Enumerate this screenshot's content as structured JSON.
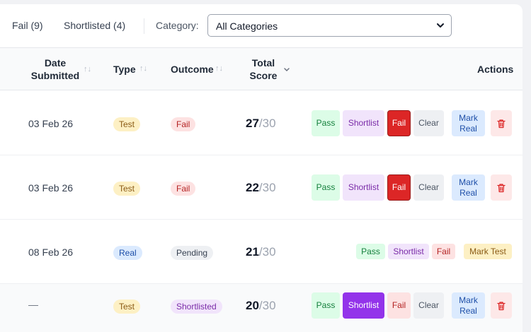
{
  "filters": {
    "fail_tab": "Fail (9)",
    "shortlisted_tab": "Shortlisted (4)",
    "category_label": "Category:",
    "category_value": "All Categories"
  },
  "table": {
    "headers": {
      "date_line1": "Date",
      "date_line2": "Submitted",
      "type": "Type",
      "outcome": "Outcome",
      "score_line1": "Total",
      "score_line2": "Score",
      "actions": "Actions"
    },
    "rows": [
      {
        "date": "03 Feb 26",
        "type": "Test",
        "outcome": "Fail",
        "score": "27",
        "total": "/30"
      },
      {
        "date": "03 Feb 26",
        "type": "Test",
        "outcome": "Fail",
        "score": "22",
        "total": "/30"
      },
      {
        "date": "08 Feb 26",
        "type": "Real",
        "outcome": "Pending",
        "score": "21",
        "total": "/30"
      },
      {
        "date": "—",
        "type": "Test",
        "outcome": "Shortlisted",
        "score": "20",
        "total": "/30"
      }
    ]
  },
  "actions": {
    "pass": "Pass",
    "shortlist": "Shortlist",
    "fail": "Fail",
    "clear": "Clear",
    "mark_real_1": "Mark",
    "mark_real_2": "Real",
    "mark_test": "Mark Test"
  },
  "icons": {
    "sort": "sort-arrows-icon",
    "chevron": "chevron-down-icon",
    "delete": "trash-icon"
  },
  "colors": {
    "fail_active": "#dc2626",
    "shortlist_active": "#9333ea",
    "pass": "#dcfce7"
  }
}
